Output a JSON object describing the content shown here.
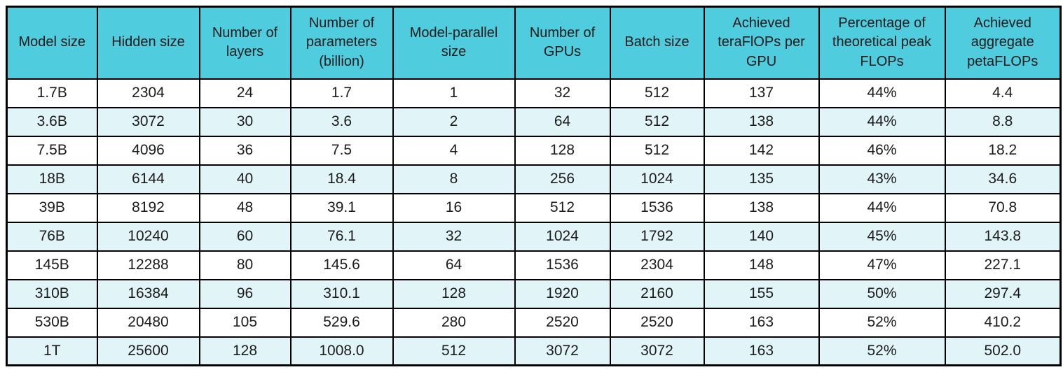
{
  "chart_data": {
    "type": "table",
    "columns": [
      "Model size",
      "Hidden size",
      "Number of layers",
      "Number of parameters (billion)",
      "Model-parallel size",
      "Number of GPUs",
      "Batch size",
      "Achieved teraFlOPs per GPU",
      "Percentage of theoretical peak FLOPs",
      "Achieved aggregate petaFLOPs"
    ],
    "rows": [
      [
        "1.7B",
        "2304",
        "24",
        "1.7",
        "1",
        "32",
        "512",
        "137",
        "44%",
        "4.4"
      ],
      [
        "3.6B",
        "3072",
        "30",
        "3.6",
        "2",
        "64",
        "512",
        "138",
        "44%",
        "8.8"
      ],
      [
        "7.5B",
        "4096",
        "36",
        "7.5",
        "4",
        "128",
        "512",
        "142",
        "46%",
        "18.2"
      ],
      [
        "18B",
        "6144",
        "40",
        "18.4",
        "8",
        "256",
        "1024",
        "135",
        "43%",
        "34.6"
      ],
      [
        "39B",
        "8192",
        "48",
        "39.1",
        "16",
        "512",
        "1536",
        "138",
        "44%",
        "70.8"
      ],
      [
        "76B",
        "10240",
        "60",
        "76.1",
        "32",
        "1024",
        "1792",
        "140",
        "45%",
        "143.8"
      ],
      [
        "145B",
        "12288",
        "80",
        "145.6",
        "64",
        "1536",
        "2304",
        "148",
        "47%",
        "227.1"
      ],
      [
        "310B",
        "16384",
        "96",
        "310.1",
        "128",
        "1920",
        "2160",
        "155",
        "50%",
        "297.4"
      ],
      [
        "530B",
        "20480",
        "105",
        "529.6",
        "280",
        "2520",
        "2520",
        "163",
        "52%",
        "410.2"
      ],
      [
        "1T",
        "25600",
        "128",
        "1008.0",
        "512",
        "3072",
        "3072",
        "163",
        "52%",
        "502.0"
      ]
    ],
    "layout": {
      "header_position": "top",
      "grid": "on",
      "row_striping": "alternate"
    }
  },
  "colors": {
    "header_bg": "#4FCDDE",
    "row_bg": "#FFFFFF",
    "row_alt_bg": "#E1F5F9",
    "border": "#000000",
    "text": "#1B1B1B"
  }
}
